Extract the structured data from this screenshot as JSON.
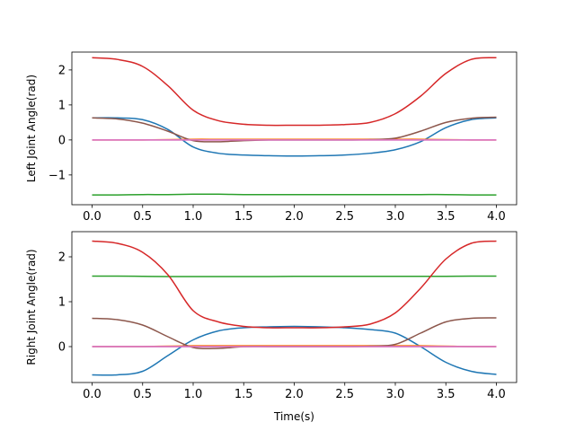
{
  "chart_data": [
    {
      "type": "line",
      "xlabel": "",
      "ylabel": "Left Joint Angle(rad)",
      "xlim": [
        -0.2,
        4.2
      ],
      "ylim": [
        -1.85,
        2.51
      ],
      "xticks": [
        "0.0",
        "0.5",
        "1.0",
        "1.5",
        "2.0",
        "2.5",
        "3.0",
        "3.5",
        "4.0"
      ],
      "yticks": [
        "−1",
        "0",
        "1",
        "2"
      ],
      "x": [
        0,
        0.25,
        0.5,
        0.75,
        1,
        1.25,
        1.5,
        1.75,
        2,
        2.25,
        2.5,
        2.75,
        3,
        3.25,
        3.5,
        3.75,
        4
      ],
      "series": [
        {
          "color": "#1f77b4",
          "values": [
            0.63,
            0.63,
            0.58,
            0.3,
            -0.2,
            -0.38,
            -0.43,
            -0.45,
            -0.46,
            -0.45,
            -0.43,
            -0.38,
            -0.28,
            -0.05,
            0.35,
            0.58,
            0.63
          ]
        },
        {
          "color": "#ff7f0e",
          "values": [
            0,
            0,
            0,
            0.01,
            0.02,
            0.02,
            0.02,
            0.02,
            0.02,
            0.02,
            0.02,
            0.02,
            0.02,
            0.02,
            0.01,
            0,
            0
          ]
        },
        {
          "color": "#2ca02c",
          "values": [
            -1.57,
            -1.57,
            -1.56,
            -1.56,
            -1.55,
            -1.55,
            -1.56,
            -1.56,
            -1.56,
            -1.56,
            -1.56,
            -1.56,
            -1.56,
            -1.56,
            -1.56,
            -1.57,
            -1.57
          ]
        },
        {
          "color": "#d62728",
          "values": [
            2.35,
            2.3,
            2.1,
            1.55,
            0.85,
            0.55,
            0.45,
            0.42,
            0.42,
            0.42,
            0.44,
            0.5,
            0.75,
            1.25,
            1.9,
            2.3,
            2.35
          ]
        },
        {
          "color": "#9467bd",
          "values": [
            0,
            0,
            0,
            0,
            0,
            0,
            0,
            0,
            0,
            0,
            0,
            0,
            0,
            0,
            0,
            0,
            0
          ]
        },
        {
          "color": "#8c564b",
          "values": [
            0.63,
            0.6,
            0.48,
            0.25,
            -0.02,
            -0.05,
            -0.02,
            0,
            0,
            0,
            0,
            0.01,
            0.05,
            0.25,
            0.5,
            0.62,
            0.65
          ]
        },
        {
          "color": "#e377c2",
          "values": [
            0,
            0,
            0,
            0,
            0,
            0,
            0,
            0,
            0,
            0,
            0,
            0,
            0,
            0,
            0,
            0,
            0
          ]
        }
      ]
    },
    {
      "type": "line",
      "xlabel": "Time(s)",
      "ylabel": "Right Joint Angle(rad)",
      "xlim": [
        -0.2,
        4.2
      ],
      "ylim": [
        -0.8,
        2.56
      ],
      "xticks": [
        "0.0",
        "0.5",
        "1.0",
        "1.5",
        "2.0",
        "2.5",
        "3.0",
        "3.5",
        "4.0"
      ],
      "yticks": [
        "0",
        "1",
        "2"
      ],
      "x": [
        0,
        0.25,
        0.5,
        0.75,
        1,
        1.25,
        1.5,
        1.75,
        2,
        2.25,
        2.5,
        2.75,
        3,
        3.25,
        3.5,
        3.75,
        4
      ],
      "series": [
        {
          "color": "#1f77b4",
          "values": [
            -0.63,
            -0.63,
            -0.55,
            -0.2,
            0.15,
            0.35,
            0.42,
            0.44,
            0.45,
            0.44,
            0.42,
            0.38,
            0.3,
            0.0,
            -0.35,
            -0.55,
            -0.62
          ]
        },
        {
          "color": "#ff7f0e",
          "values": [
            0,
            0,
            0,
            0.01,
            0.02,
            0.02,
            0.02,
            0.02,
            0.02,
            0.02,
            0.02,
            0.02,
            0.02,
            0.02,
            0.01,
            0,
            0
          ]
        },
        {
          "color": "#2ca02c",
          "values": [
            1.57,
            1.57,
            1.565,
            1.56,
            1.56,
            1.56,
            1.56,
            1.56,
            1.565,
            1.565,
            1.565,
            1.565,
            1.565,
            1.565,
            1.565,
            1.57,
            1.57
          ]
        },
        {
          "color": "#d62728",
          "values": [
            2.35,
            2.3,
            2.1,
            1.6,
            0.8,
            0.55,
            0.45,
            0.42,
            0.42,
            0.42,
            0.44,
            0.5,
            0.75,
            1.3,
            1.95,
            2.3,
            2.35
          ]
        },
        {
          "color": "#9467bd",
          "values": [
            0,
            0,
            0,
            0,
            0,
            0,
            0,
            0,
            0,
            0,
            0,
            0,
            0,
            0,
            0,
            0,
            0
          ]
        },
        {
          "color": "#8c564b",
          "values": [
            0.63,
            0.6,
            0.48,
            0.22,
            -0.02,
            -0.04,
            0,
            0,
            0,
            0,
            0,
            0.01,
            0.05,
            0.3,
            0.55,
            0.63,
            0.64
          ]
        },
        {
          "color": "#e377c2",
          "values": [
            0,
            0,
            0,
            0,
            0,
            0,
            0,
            0,
            0,
            0,
            0,
            0,
            0,
            0,
            0,
            0,
            0
          ]
        }
      ]
    }
  ]
}
